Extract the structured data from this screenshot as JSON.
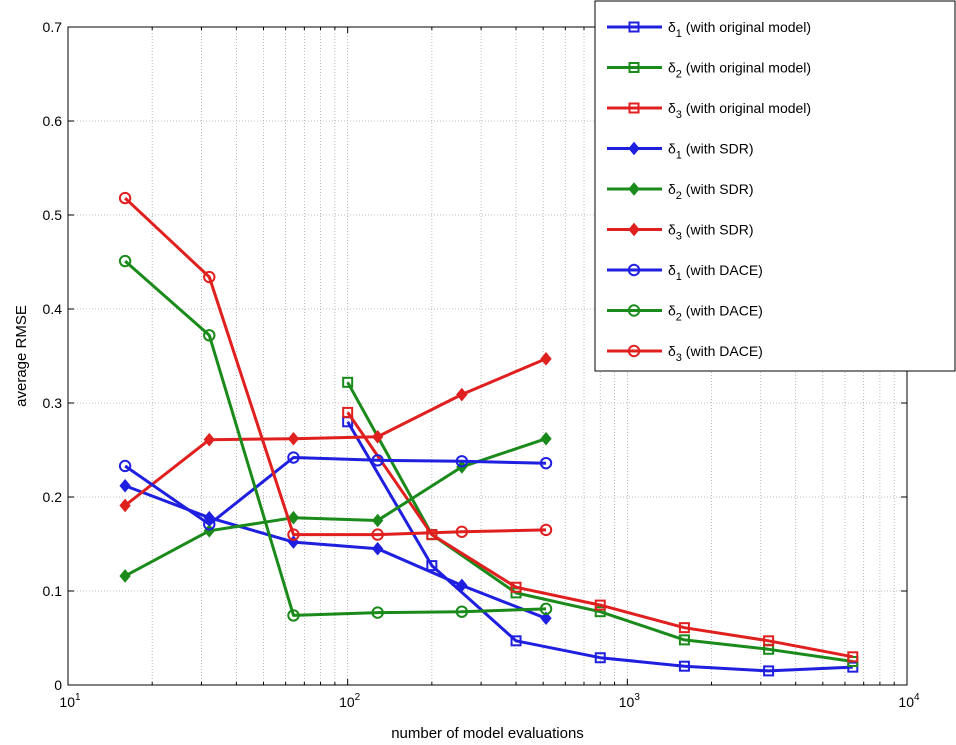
{
  "chart_data": {
    "type": "line",
    "xscale": "log",
    "xlim": [
      10,
      10000
    ],
    "ylim": [
      0,
      0.7
    ],
    "grid": true,
    "legend_position": "top-right",
    "xlabel": "number of model evaluations",
    "ylabel": "average RMSE",
    "xticks": [
      {
        "base": "10",
        "exp": "1"
      },
      {
        "base": "10",
        "exp": "2"
      },
      {
        "base": "10",
        "exp": "3"
      },
      {
        "base": "10",
        "exp": "4"
      }
    ],
    "yticks": [
      "0",
      "0.1",
      "0.2",
      "0.3",
      "0.4",
      "0.5",
      "0.6",
      "0.7"
    ],
    "series": [
      {
        "name": "δ1 (with original model)",
        "sym": "δ",
        "sub": "1",
        "desc": " (with original model)",
        "color": "#1f1fe0",
        "marker": "square",
        "x": [
          100,
          200,
          400,
          800,
          1600,
          3200,
          6400
        ],
        "y": [
          0.28,
          0.127,
          0.047,
          0.029,
          0.02,
          0.015,
          0.019
        ]
      },
      {
        "name": "δ2 (with original model)",
        "sym": "δ",
        "sub": "2",
        "desc": " (with original model)",
        "color": "#1a8a1a",
        "marker": "square",
        "x": [
          100,
          200,
          400,
          800,
          1600,
          3200,
          6400
        ],
        "y": [
          0.322,
          0.16,
          0.098,
          0.078,
          0.048,
          0.038,
          0.025
        ]
      },
      {
        "name": "δ3 (with original model)",
        "sym": "δ",
        "sub": "3",
        "desc": " (with original model)",
        "color": "#e01f1f",
        "marker": "square",
        "x": [
          100,
          200,
          400,
          800,
          1600,
          3200,
          6400
        ],
        "y": [
          0.29,
          0.16,
          0.104,
          0.085,
          0.061,
          0.047,
          0.03
        ]
      },
      {
        "name": "δ1 (with  SDR)",
        "sym": "δ",
        "sub": "1",
        "desc": " (with  SDR)",
        "color": "#1f1fe0",
        "marker": "diamond",
        "x": [
          16,
          32,
          64,
          128,
          256,
          512
        ],
        "y": [
          0.212,
          0.178,
          0.152,
          0.145,
          0.106,
          0.071
        ]
      },
      {
        "name": "δ2 (with  SDR)",
        "sym": "δ",
        "sub": "2",
        "desc": " (with  SDR)",
        "color": "#1a8a1a",
        "marker": "diamond",
        "x": [
          16,
          32,
          64,
          128,
          256,
          512
        ],
        "y": [
          0.116,
          0.164,
          0.178,
          0.175,
          0.232,
          0.262
        ]
      },
      {
        "name": "δ3 (with  SDR)",
        "sym": "δ",
        "sub": "3",
        "desc": " (with  SDR)",
        "color": "#e01f1f",
        "marker": "diamond",
        "x": [
          16,
          32,
          64,
          128,
          256,
          512
        ],
        "y": [
          0.191,
          0.261,
          0.262,
          0.264,
          0.309,
          0.347
        ]
      },
      {
        "name": "δ1 (with DACE)",
        "sym": "δ",
        "sub": "1",
        "desc": " (with DACE)",
        "color": "#1f1fe0",
        "marker": "circle",
        "x": [
          16,
          32,
          64,
          128,
          256,
          512
        ],
        "y": [
          0.233,
          0.171,
          0.242,
          0.239,
          0.238,
          0.236
        ]
      },
      {
        "name": "δ2 (with DACE)",
        "sym": "δ",
        "sub": "2",
        "desc": " (with DACE)",
        "color": "#1a8a1a",
        "marker": "circle",
        "x": [
          16,
          32,
          64,
          128,
          256,
          512
        ],
        "y": [
          0.451,
          0.372,
          0.074,
          0.077,
          0.078,
          0.081
        ]
      },
      {
        "name": "δ3 (with DACE)",
        "sym": "δ",
        "sub": "3",
        "desc": " (with DACE)",
        "color": "#e01f1f",
        "marker": "circle",
        "x": [
          16,
          32,
          64,
          128,
          256,
          512
        ],
        "y": [
          0.518,
          0.434,
          0.16,
          0.16,
          0.163,
          0.165
        ]
      }
    ]
  }
}
